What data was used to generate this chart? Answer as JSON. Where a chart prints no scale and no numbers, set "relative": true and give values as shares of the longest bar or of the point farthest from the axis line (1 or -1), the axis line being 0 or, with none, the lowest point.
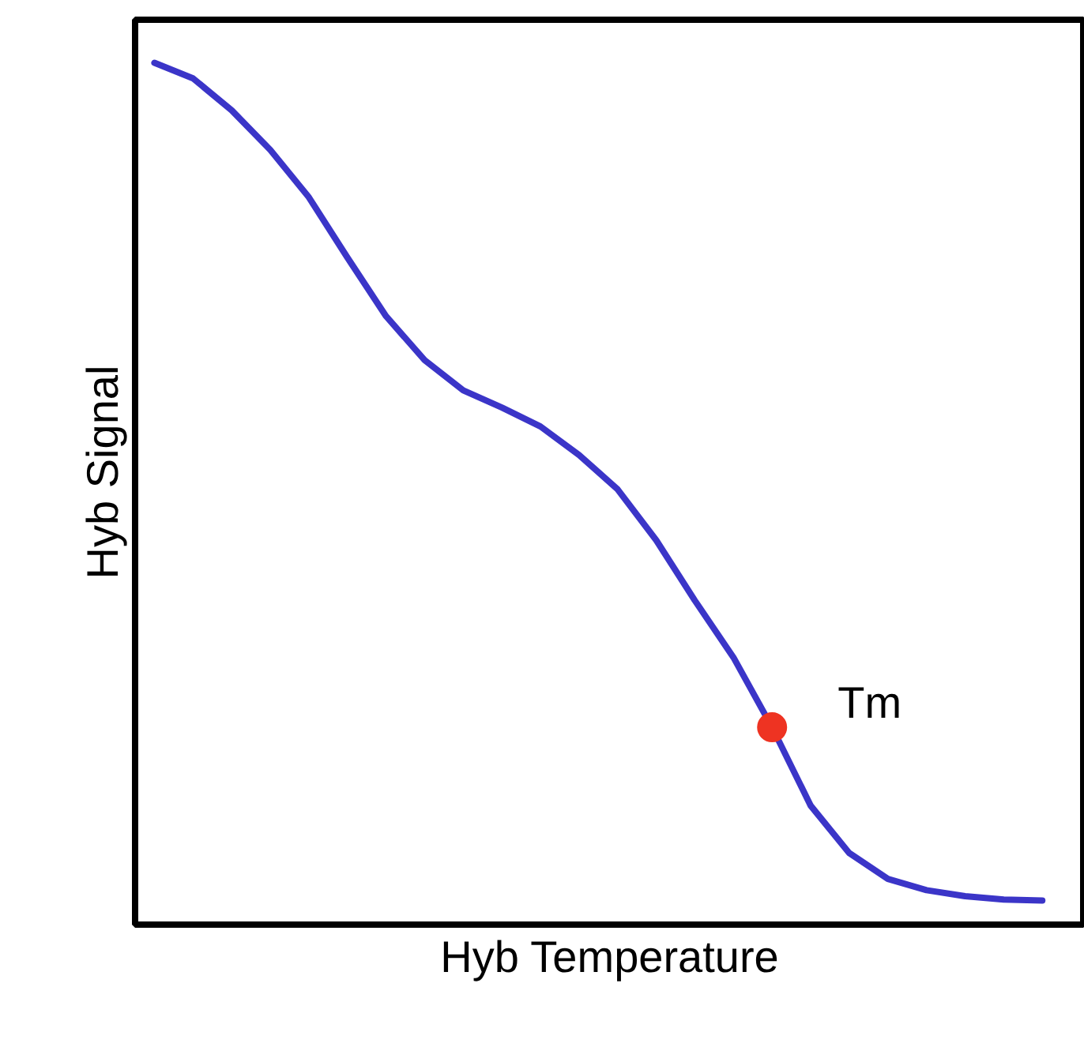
{
  "chart_data": {
    "type": "line",
    "relative": true,
    "xlabel": "Hyb Temperature",
    "ylabel": "Hyb Signal",
    "categories": [
      null,
      null,
      null,
      null,
      null,
      null,
      null,
      null,
      null,
      null,
      null,
      null,
      null,
      null,
      null,
      null,
      null,
      null,
      null,
      null,
      null,
      null,
      null,
      null
    ],
    "series": [
      {
        "color": "#3b35c8",
        "values": [
          1.0,
          0.982,
          0.945,
          0.899,
          0.844,
          0.774,
          0.706,
          0.655,
          0.62,
          0.6,
          0.578,
          0.545,
          0.505,
          0.446,
          0.376,
          0.31,
          0.229,
          0.138,
          0.083,
          0.053,
          0.04,
          0.033,
          0.029,
          0.028
        ]
      }
    ],
    "annotations": [
      "Tm"
    ]
  }
}
